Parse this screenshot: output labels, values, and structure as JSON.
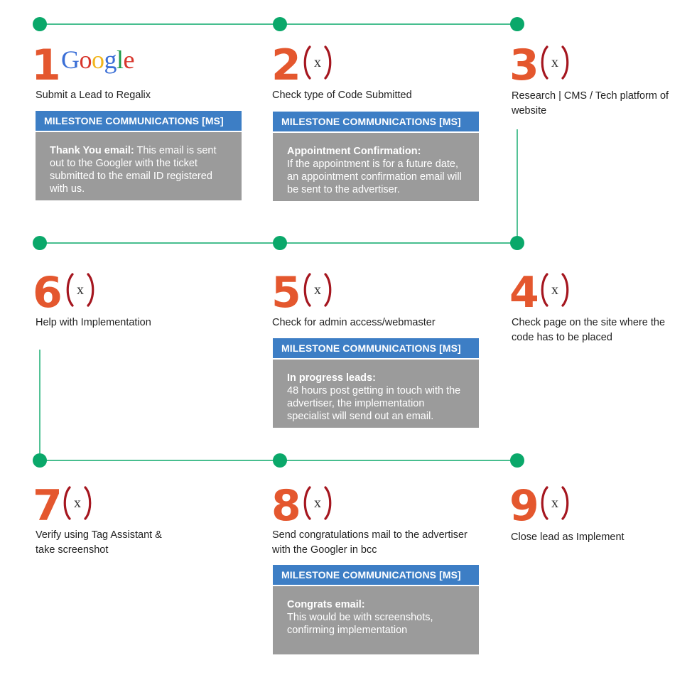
{
  "steps": [
    {
      "number": "1",
      "label": "Submit a Lead to Regalix",
      "logo": "Google"
    },
    {
      "number": "2",
      "label": "Check type of Code Submitted"
    },
    {
      "number": "3",
      "label": "Research | CMS / Tech platform of website"
    },
    {
      "number": "4",
      "label": "Check page on the site where the code has to be placed"
    },
    {
      "number": "5",
      "label": "Check for admin access/webmaster"
    },
    {
      "number": "6",
      "label": "Help with Implementation"
    },
    {
      "number": "7",
      "label": "Verify using Tag Assistant & take screenshot"
    },
    {
      "number": "8",
      "label": "Send congratulations mail to the advertiser with the Googler in bcc"
    },
    {
      "number": "9",
      "label": "Close lead as Implement"
    }
  ],
  "icon": {
    "name": "regalix-x-icon",
    "glyph": "x"
  },
  "boxes": [
    {
      "header": "MILESTONE COMMUNICATIONS [MS]",
      "title": "Thank You email:",
      "text": "This email is sent out to the Googler with the ticket submitted to the email ID registered with us."
    },
    {
      "header": "MILESTONE COMMUNICATIONS [MS]",
      "title": "Appointment Confirmation:",
      "text": "If the appointment is for a future date, an appointment confirmation email will be sent to the advertiser."
    },
    {
      "header": "MILESTONE COMMUNICATIONS [MS]",
      "title": "In progress leads:",
      "text": "48 hours post getting in touch with the advertiser, the implementation specialist will send out an email."
    },
    {
      "header": "MILESTONE COMMUNICATIONS [MS]",
      "title": "Congrats email:",
      "text": "This would be with screenshots, confirming implementation"
    }
  ],
  "colors": {
    "node": "#0aa86a",
    "line": "#0aa86a",
    "number": "#e4572e",
    "header": "#3d7ec5",
    "body": "#9b9b9b",
    "paren": "#a5161f"
  }
}
